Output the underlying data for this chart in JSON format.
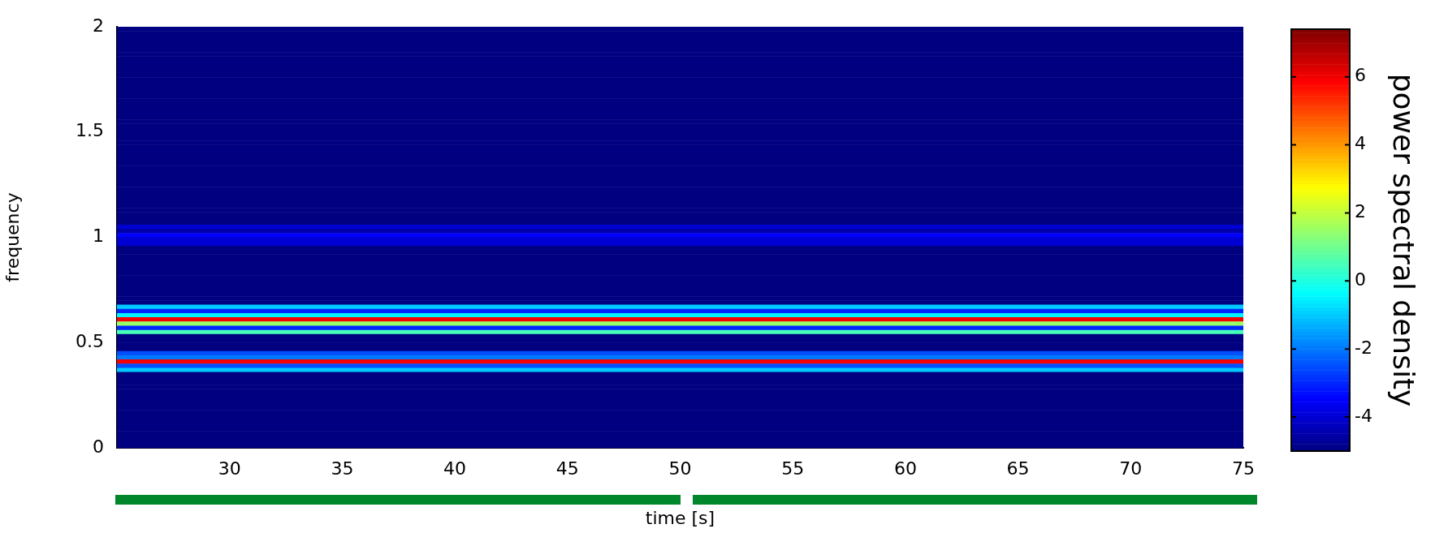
{
  "chart_data": {
    "type": "heatmap",
    "xlabel": "time [s]",
    "ylabel": "frequency",
    "clabel": "power spectral density",
    "xlim": [
      25,
      75
    ],
    "xticks": [
      30,
      35,
      40,
      45,
      50,
      55,
      60,
      65,
      70,
      75
    ],
    "ylim": [
      0,
      2
    ],
    "yticks": [
      0,
      0.5,
      1,
      1.5,
      2
    ],
    "clim": [
      -5,
      7.4
    ],
    "cticks": [
      -4,
      -2,
      0,
      2,
      4,
      6
    ],
    "cells": [
      [
        -5
      ],
      [
        -5
      ],
      [
        -5
      ],
      [
        -5
      ],
      [
        -5
      ],
      [
        -5
      ],
      [
        -5
      ],
      [
        -5
      ],
      [
        -5
      ],
      [
        -5
      ],
      [
        -5
      ],
      [
        -5
      ],
      [
        -5
      ],
      [
        -5
      ],
      [
        -5
      ],
      [
        -5
      ],
      [
        -5
      ],
      [
        -5
      ],
      [
        -5
      ],
      [
        -5
      ],
      [
        -5
      ],
      [
        -5
      ],
      [
        -5
      ],
      [
        -5
      ],
      [
        -5
      ],
      [
        -5
      ],
      [
        -5
      ],
      [
        -5
      ],
      [
        -5
      ],
      [
        -5
      ],
      [
        -5
      ],
      [
        -5
      ],
      [
        -5
      ],
      [
        -5
      ],
      [
        -5
      ],
      [
        -5
      ],
      [
        -5
      ],
      [
        -5
      ],
      [
        -5
      ],
      [
        -5
      ],
      [
        -5
      ],
      [
        -5
      ],
      [
        -5
      ],
      [
        -5
      ],
      [
        -5
      ],
      [
        -5
      ],
      [
        -5
      ],
      [
        -4
      ],
      [
        -4.5
      ],
      [
        -3.5
      ],
      [
        -4
      ],
      [
        -4
      ],
      [
        -5
      ],
      [
        -5
      ],
      [
        -5
      ],
      [
        -5
      ],
      [
        -5
      ],
      [
        -5
      ],
      [
        -5
      ],
      [
        -5
      ],
      [
        -5
      ],
      [
        -5
      ],
      [
        -5
      ],
      [
        -5
      ],
      [
        -5
      ],
      [
        -5
      ],
      [
        -1
      ],
      [
        -3
      ],
      [
        -0.5
      ],
      [
        6
      ],
      [
        1.5
      ],
      [
        -3
      ],
      [
        0.5
      ],
      [
        -5
      ],
      [
        -5
      ],
      [
        -5
      ],
      [
        -5
      ],
      [
        -2.5
      ],
      [
        -2
      ],
      [
        6
      ],
      [
        -2.5
      ],
      [
        -1
      ],
      [
        -5
      ],
      [
        -5
      ],
      [
        -5
      ],
      [
        -5
      ],
      [
        -5
      ],
      [
        -5
      ],
      [
        -5
      ],
      [
        -5
      ],
      [
        -5
      ],
      [
        -5
      ],
      [
        -5
      ],
      [
        -5
      ],
      [
        -5
      ],
      [
        -5
      ],
      [
        -5
      ],
      [
        -5
      ],
      [
        -5
      ],
      [
        -5
      ]
    ]
  }
}
